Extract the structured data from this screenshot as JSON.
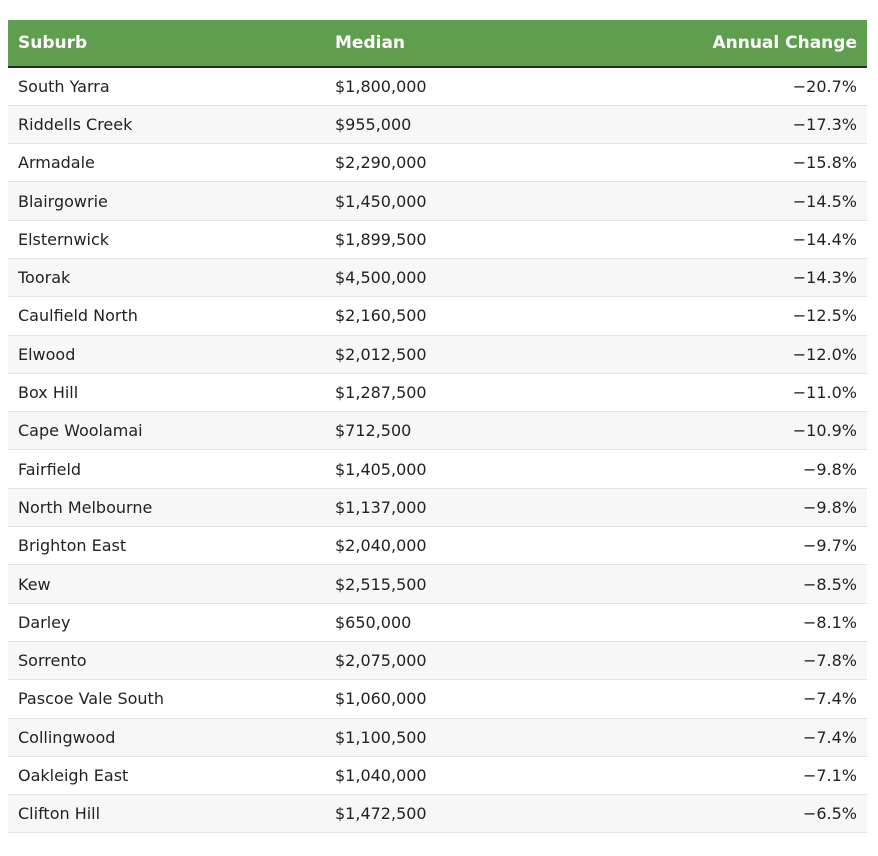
{
  "table": {
    "columns": [
      "Suburb",
      "Median",
      "Annual Change"
    ],
    "header_color": "#5f9e4f",
    "rows": [
      [
        "South Yarra",
        "$1,800,000",
        "−20.7%"
      ],
      [
        "Riddells Creek",
        "$955,000",
        "−17.3%"
      ],
      [
        "Armadale",
        "$2,290,000",
        "−15.8%"
      ],
      [
        "Blairgowrie",
        "$1,450,000",
        "−14.5%"
      ],
      [
        "Elsternwick",
        "$1,899,500",
        "−14.4%"
      ],
      [
        "Toorak",
        "$4,500,000",
        "−14.3%"
      ],
      [
        "Caulfield North",
        "$2,160,500",
        "−12.5%"
      ],
      [
        "Elwood",
        "$2,012,500",
        "−12.0%"
      ],
      [
        "Box Hill",
        "$1,287,500",
        "−11.0%"
      ],
      [
        "Cape Woolamai",
        "$712,500",
        "−10.9%"
      ],
      [
        "Fairfield",
        "$1,405,000",
        "−9.8%"
      ],
      [
        "North Melbourne",
        "$1,137,000",
        "−9.8%"
      ],
      [
        "Brighton East",
        "$2,040,000",
        "−9.7%"
      ],
      [
        "Kew",
        "$2,515,500",
        "−8.5%"
      ],
      [
        "Darley",
        "$650,000",
        "−8.1%"
      ],
      [
        "Sorrento",
        "$2,075,000",
        "−7.8%"
      ],
      [
        "Pascoe Vale South",
        "$1,060,000",
        "−7.4%"
      ],
      [
        "Collingwood",
        "$1,100,500",
        "−7.4%"
      ],
      [
        "Oakleigh East",
        "$1,040,000",
        "−7.1%"
      ],
      [
        "Clifton Hill",
        "$1,472,500",
        "−6.5%"
      ]
    ]
  }
}
